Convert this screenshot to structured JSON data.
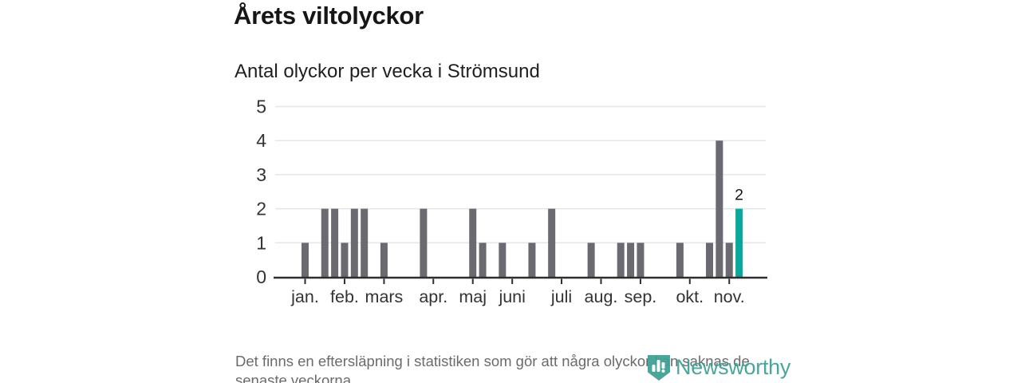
{
  "header": {
    "title": "Årets viltolyckor",
    "subtitle": "Antal olyckor per vecka i Strömsund"
  },
  "chart_data": {
    "type": "bar",
    "title": "Årets viltolyckor",
    "subtitle": "Antal olyckor per vecka i Strömsund",
    "x_unit": "week_of_year",
    "first_week": 1,
    "values": [
      1,
      0,
      2,
      2,
      1,
      2,
      2,
      0,
      1,
      0,
      0,
      0,
      2,
      0,
      0,
      0,
      0,
      2,
      1,
      0,
      1,
      0,
      0,
      1,
      0,
      2,
      0,
      0,
      0,
      1,
      0,
      0,
      1,
      1,
      1,
      0,
      0,
      0,
      1,
      0,
      0,
      1,
      4,
      1,
      2
    ],
    "highlight": {
      "week": 45,
      "value": 2,
      "label": "2"
    },
    "ylim": [
      0,
      5
    ],
    "yticks": [
      0,
      1,
      2,
      3,
      4,
      5
    ],
    "month_ticks": [
      {
        "label": "jan.",
        "week": 1
      },
      {
        "label": "feb.",
        "week": 5
      },
      {
        "label": "mars",
        "week": 9
      },
      {
        "label": "apr.",
        "week": 14
      },
      {
        "label": "maj",
        "week": 18
      },
      {
        "label": "juni",
        "week": 22
      },
      {
        "label": "juli",
        "week": 27
      },
      {
        "label": "aug.",
        "week": 31
      },
      {
        "label": "sep.",
        "week": 35
      },
      {
        "label": "okt.",
        "week": 40
      },
      {
        "label": "nov.",
        "week": 44
      }
    ],
    "grid": true,
    "legend_position": "none",
    "colors": {
      "bar": "#6a6a70",
      "highlight": "#0aa79c",
      "grid": "#e5e5e5",
      "axis": "#2e2e2e",
      "tick_label": "#333333",
      "value_label": "#141414"
    }
  },
  "footer": {
    "note": "Det finns en eftersläpning i statistiken som gör att några olyckor kan saknas de senaste veckorna."
  },
  "branding": {
    "name": "Newsworthy",
    "color": "#3ca093"
  }
}
